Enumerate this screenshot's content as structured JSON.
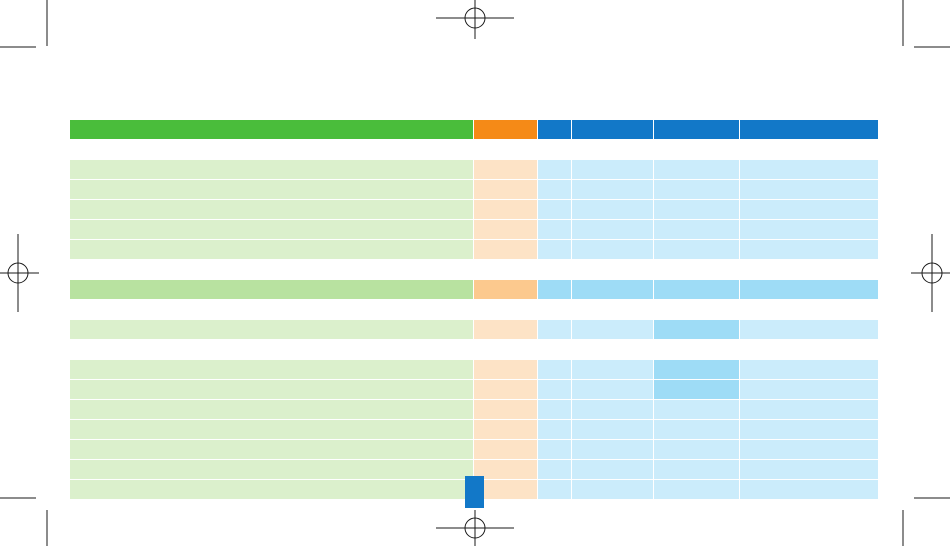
{
  "table": {
    "columns": 6,
    "groups": [
      {
        "rows": [
          {
            "highlight": []
          }
        ],
        "kind": "header"
      },
      {
        "rows": [
          {
            "highlight": []
          },
          {
            "highlight": []
          },
          {
            "highlight": []
          },
          {
            "highlight": []
          },
          {
            "highlight": []
          }
        ],
        "kind": "body"
      },
      {
        "rows": [
          {
            "highlight": []
          }
        ],
        "kind": "total"
      },
      {
        "rows": [
          {
            "highlight": [
              4
            ]
          }
        ],
        "kind": "body"
      },
      {
        "rows": [
          {
            "highlight": [
              4
            ]
          },
          {
            "highlight": [
              4
            ]
          },
          {
            "highlight": []
          },
          {
            "highlight": []
          },
          {
            "highlight": []
          },
          {
            "highlight": []
          },
          {
            "highlight": []
          }
        ],
        "kind": "body"
      }
    ]
  },
  "colors": {
    "header_green": "#4abd3b",
    "header_orange": "#f58a17",
    "header_blue": "#1278c8",
    "body_green": "#dbf0cc",
    "body_orange": "#fde3c6",
    "body_blue": "#cbecfb",
    "total_green": "#b8e2a0",
    "total_orange": "#fcc98e",
    "highlight_blue": "#9edcf6"
  }
}
